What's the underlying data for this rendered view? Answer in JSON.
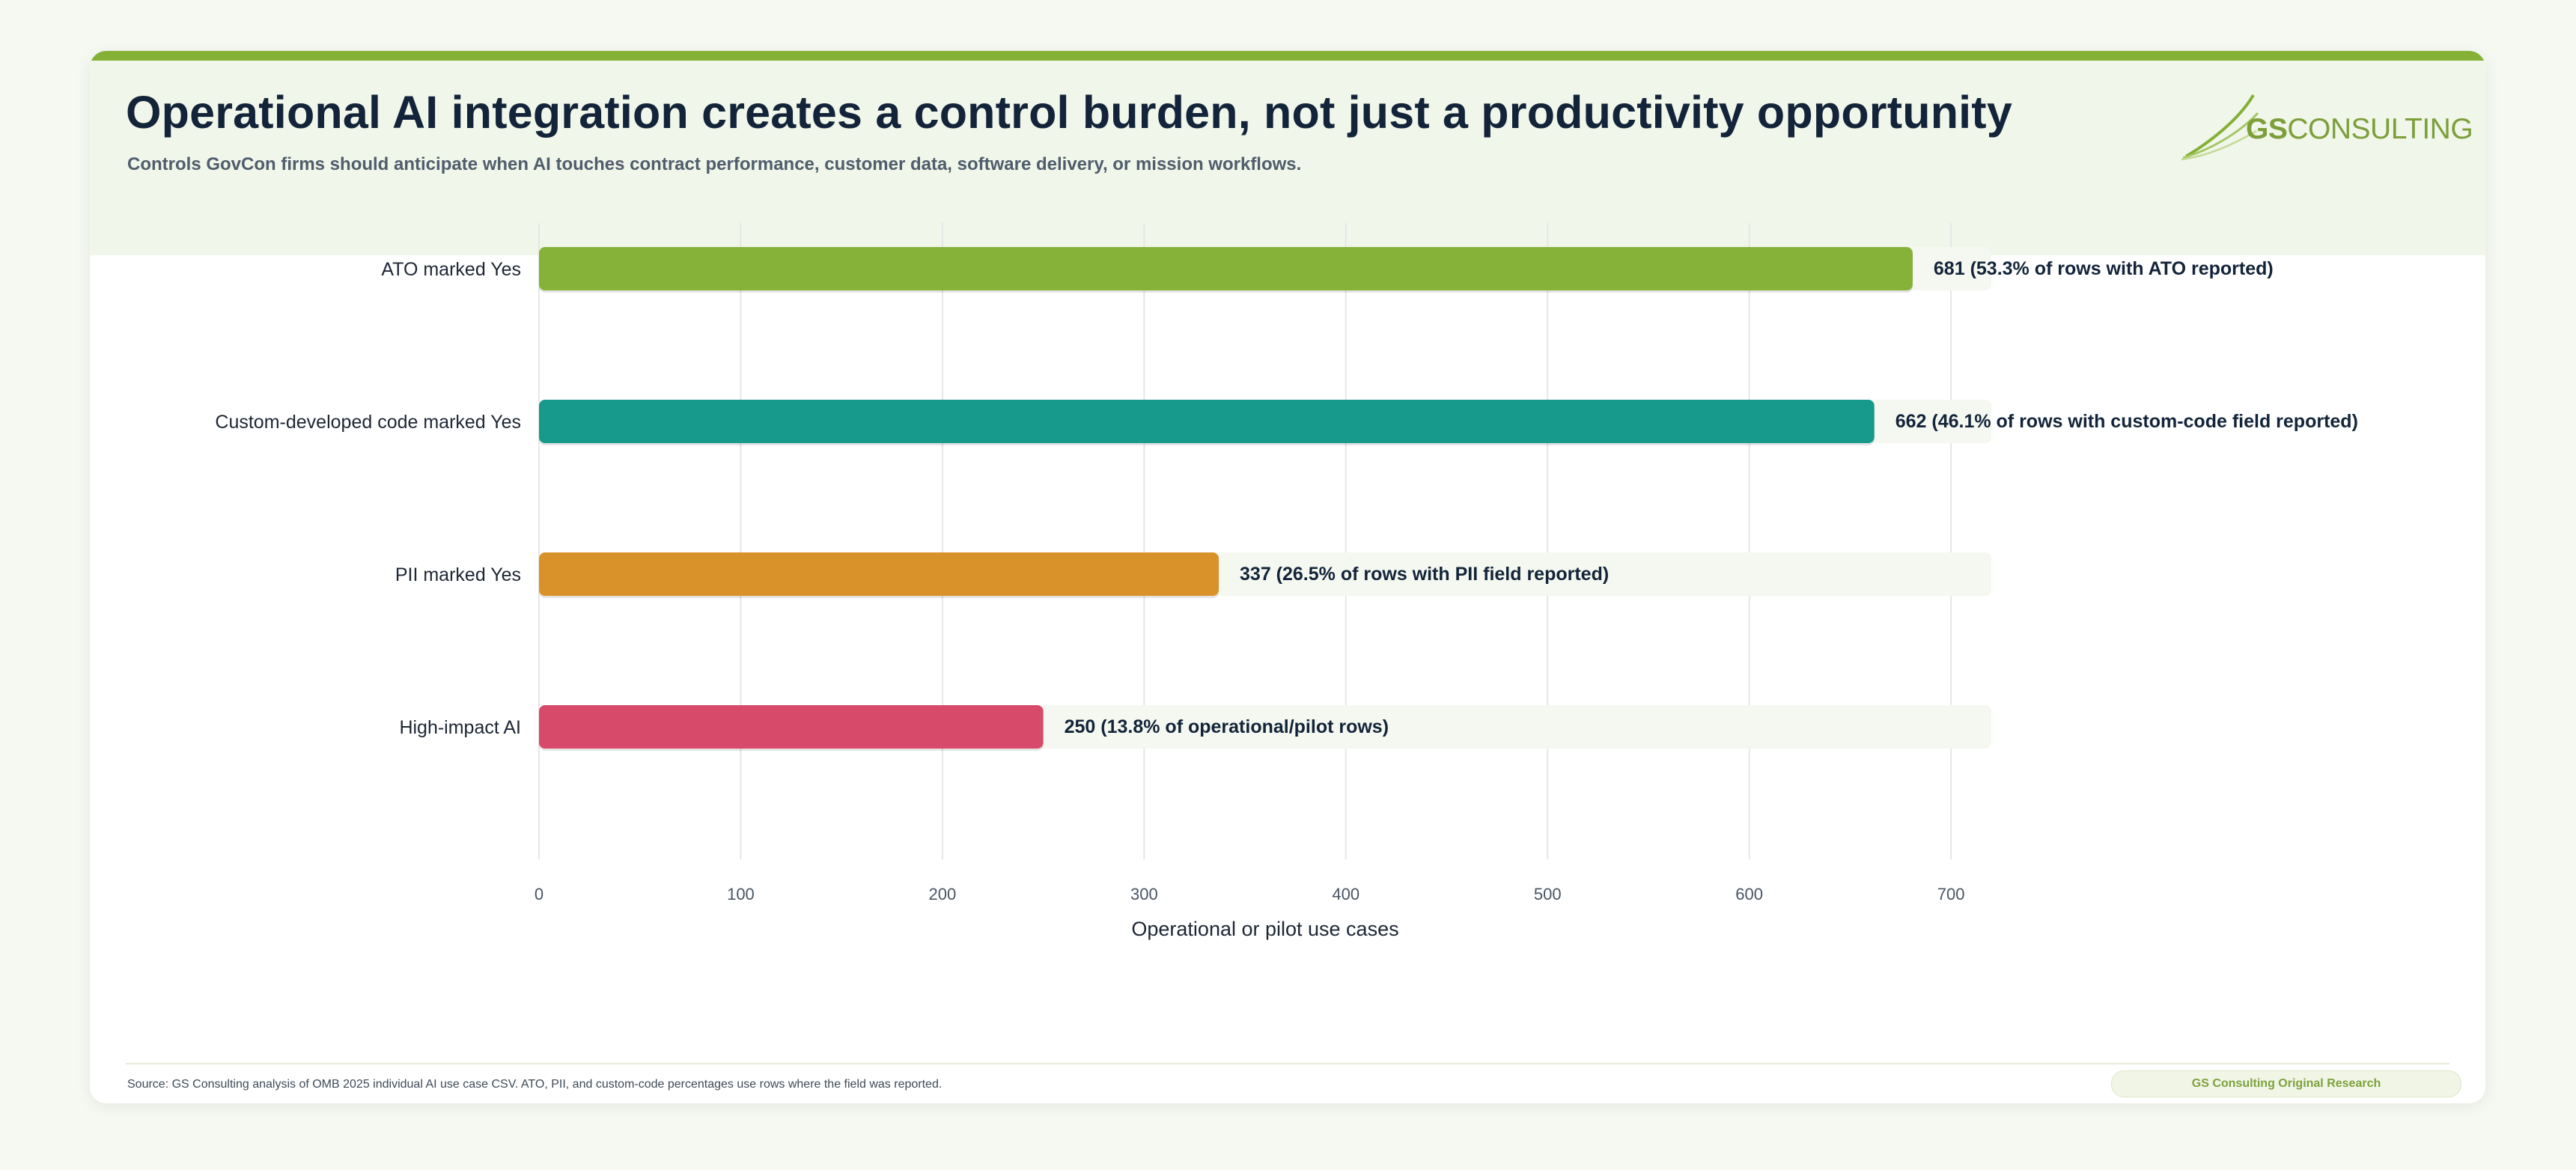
{
  "header": {
    "title": "Operational AI integration creates a control burden, not just a productivity opportunity",
    "subtitle": "Controls GovCon firms should anticipate when AI touches contract performance, customer data, software delivery, or mission workflows."
  },
  "logo": {
    "text_bold": "GS",
    "text_rest": "CONSULTING"
  },
  "colors": {
    "accent": "#84b135",
    "title": "#13243a",
    "track": "#f5f8f0",
    "grid": "#e6e6e6"
  },
  "chart_data": {
    "type": "bar",
    "orientation": "horizontal",
    "categories": [
      "ATO marked Yes",
      "Custom-developed code marked Yes",
      "PII marked Yes",
      "High-impact AI"
    ],
    "values": [
      681,
      662,
      337,
      250
    ],
    "data_labels": [
      "681 (53.3% of rows with ATO reported)",
      "662 (46.1% of rows with custom-code field reported)",
      "337 (26.5% of rows with PII field reported)",
      "250 (13.8% of operational/pilot rows)"
    ],
    "bar_colors": [
      "#86b23a",
      "#17998c",
      "#d9922a",
      "#d84a69"
    ],
    "xlabel": "Operational or pilot use cases",
    "xlim": [
      0,
      720
    ],
    "xticks": [
      0,
      100,
      200,
      300,
      400,
      500,
      600,
      700
    ],
    "grid": "vertical"
  },
  "footer": {
    "source": "Source: GS Consulting analysis of OMB 2025 individual AI use case CSV. ATO, PII, and custom-code percentages use rows where the field was reported.",
    "badge": "GS Consulting Original Research"
  }
}
